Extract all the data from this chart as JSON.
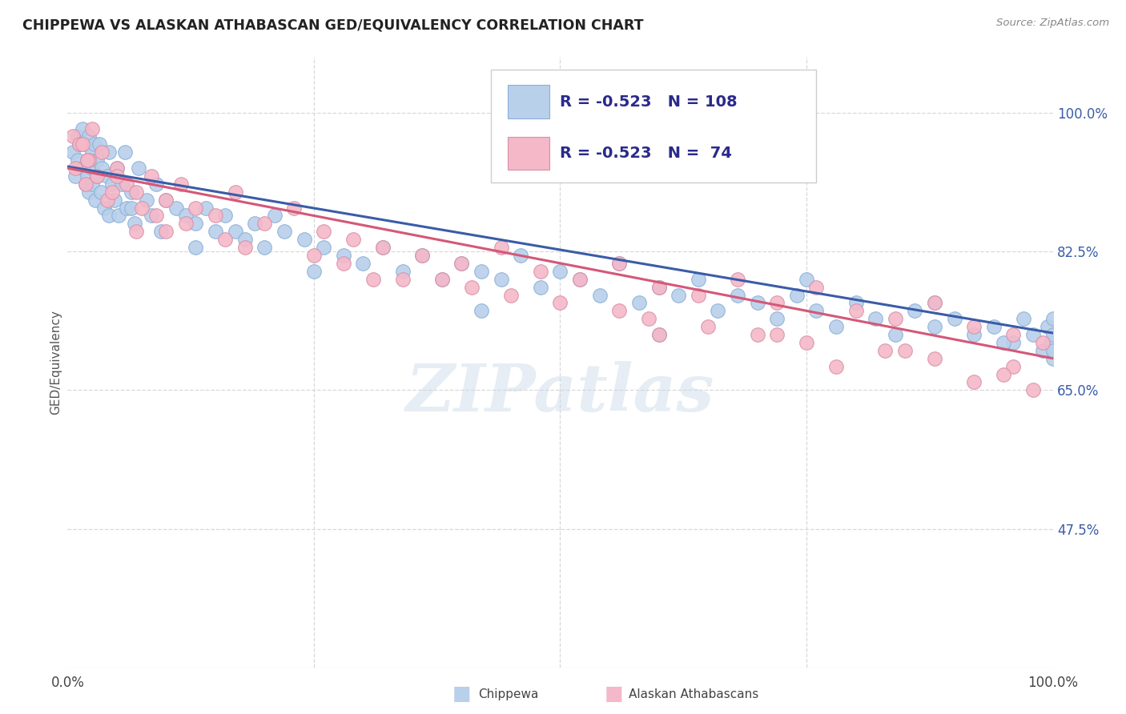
{
  "title": "CHIPPEWA VS ALASKAN ATHABASCAN GED/EQUIVALENCY CORRELATION CHART",
  "source": "Source: ZipAtlas.com",
  "ylabel": "GED/Equivalency",
  "ytick_labels": [
    "100.0%",
    "82.5%",
    "65.0%",
    "47.5%"
  ],
  "ytick_values": [
    1.0,
    0.825,
    0.65,
    0.475
  ],
  "legend_entry1": {
    "label": "Chippewa",
    "R": "-0.523",
    "N": "108",
    "color": "#b8d0ea"
  },
  "legend_entry2": {
    "label": "Alaskan Athabascans",
    "R": "-0.523",
    "N": "74",
    "color": "#f5b8c8"
  },
  "line_color1": "#3a5ca8",
  "line_color2": "#d45878",
  "background_color": "#ffffff",
  "watermark": "ZIPatlas",
  "xlim": [
    0.0,
    1.0
  ],
  "ylim": [
    0.3,
    1.07
  ],
  "line1_x0": 0.0,
  "line1_y0": 0.932,
  "line1_x1": 1.0,
  "line1_y1": 0.722,
  "line2_x0": 0.0,
  "line2_y0": 0.93,
  "line2_x1": 1.0,
  "line2_y1": 0.69,
  "chip_scatter_x": [
    0.005,
    0.008,
    0.01,
    0.01,
    0.012,
    0.015,
    0.015,
    0.018,
    0.018,
    0.02,
    0.02,
    0.022,
    0.022,
    0.025,
    0.025,
    0.025,
    0.027,
    0.028,
    0.03,
    0.03,
    0.032,
    0.034,
    0.035,
    0.037,
    0.04,
    0.042,
    0.042,
    0.045,
    0.048,
    0.05,
    0.052,
    0.055,
    0.058,
    0.06,
    0.065,
    0.068,
    0.072,
    0.08,
    0.085,
    0.09,
    0.095,
    0.1,
    0.11,
    0.12,
    0.13,
    0.14,
    0.15,
    0.16,
    0.17,
    0.18,
    0.19,
    0.2,
    0.21,
    0.22,
    0.24,
    0.26,
    0.28,
    0.3,
    0.32,
    0.34,
    0.36,
    0.38,
    0.4,
    0.42,
    0.44,
    0.46,
    0.48,
    0.5,
    0.52,
    0.54,
    0.56,
    0.58,
    0.6,
    0.62,
    0.64,
    0.66,
    0.68,
    0.7,
    0.72,
    0.74,
    0.76,
    0.78,
    0.8,
    0.82,
    0.84,
    0.86,
    0.88,
    0.9,
    0.92,
    0.94,
    0.96,
    0.97,
    0.98,
    0.99,
    0.995,
    0.998,
    1.0,
    1.0,
    1.0,
    1.0,
    0.065,
    0.13,
    0.25,
    0.42,
    0.6,
    0.75,
    0.88,
    0.95
  ],
  "chip_scatter_y": [
    0.95,
    0.92,
    0.97,
    0.94,
    0.96,
    0.93,
    0.98,
    0.91,
    0.96,
    0.94,
    0.92,
    0.97,
    0.9,
    0.95,
    0.93,
    0.91,
    0.96,
    0.89,
    0.94,
    0.92,
    0.96,
    0.9,
    0.93,
    0.88,
    0.92,
    0.95,
    0.87,
    0.91,
    0.89,
    0.93,
    0.87,
    0.91,
    0.95,
    0.88,
    0.9,
    0.86,
    0.93,
    0.89,
    0.87,
    0.91,
    0.85,
    0.89,
    0.88,
    0.87,
    0.86,
    0.88,
    0.85,
    0.87,
    0.85,
    0.84,
    0.86,
    0.83,
    0.87,
    0.85,
    0.84,
    0.83,
    0.82,
    0.81,
    0.83,
    0.8,
    0.82,
    0.79,
    0.81,
    0.8,
    0.79,
    0.82,
    0.78,
    0.8,
    0.79,
    0.77,
    0.81,
    0.76,
    0.78,
    0.77,
    0.79,
    0.75,
    0.77,
    0.76,
    0.74,
    0.77,
    0.75,
    0.73,
    0.76,
    0.74,
    0.72,
    0.75,
    0.73,
    0.74,
    0.72,
    0.73,
    0.71,
    0.74,
    0.72,
    0.7,
    0.73,
    0.71,
    0.69,
    0.74,
    0.72,
    0.7,
    0.88,
    0.83,
    0.8,
    0.75,
    0.72,
    0.79,
    0.76,
    0.71
  ],
  "ath_scatter_x": [
    0.005,
    0.008,
    0.012,
    0.018,
    0.022,
    0.025,
    0.03,
    0.035,
    0.04,
    0.05,
    0.06,
    0.07,
    0.085,
    0.1,
    0.115,
    0.13,
    0.15,
    0.17,
    0.2,
    0.23,
    0.26,
    0.29,
    0.32,
    0.36,
    0.4,
    0.44,
    0.48,
    0.52,
    0.56,
    0.6,
    0.64,
    0.68,
    0.72,
    0.76,
    0.8,
    0.84,
    0.88,
    0.92,
    0.96,
    0.99,
    0.045,
    0.09,
    0.18,
    0.31,
    0.45,
    0.59,
    0.72,
    0.85,
    0.96,
    0.02,
    0.075,
    0.16,
    0.28,
    0.41,
    0.56,
    0.7,
    0.83,
    0.95,
    0.015,
    0.12,
    0.38,
    0.65,
    0.88,
    0.05,
    0.25,
    0.5,
    0.75,
    0.98,
    0.07,
    0.34,
    0.78,
    0.92,
    0.6,
    0.1
  ],
  "ath_scatter_y": [
    0.97,
    0.93,
    0.96,
    0.91,
    0.94,
    0.98,
    0.92,
    0.95,
    0.89,
    0.93,
    0.91,
    0.9,
    0.92,
    0.89,
    0.91,
    0.88,
    0.87,
    0.9,
    0.86,
    0.88,
    0.85,
    0.84,
    0.83,
    0.82,
    0.81,
    0.83,
    0.8,
    0.79,
    0.81,
    0.78,
    0.77,
    0.79,
    0.76,
    0.78,
    0.75,
    0.74,
    0.76,
    0.73,
    0.72,
    0.71,
    0.9,
    0.87,
    0.83,
    0.79,
    0.77,
    0.74,
    0.72,
    0.7,
    0.68,
    0.94,
    0.88,
    0.84,
    0.81,
    0.78,
    0.75,
    0.72,
    0.7,
    0.67,
    0.96,
    0.86,
    0.79,
    0.73,
    0.69,
    0.92,
    0.82,
    0.76,
    0.71,
    0.65,
    0.85,
    0.79,
    0.68,
    0.66,
    0.72,
    0.85
  ]
}
